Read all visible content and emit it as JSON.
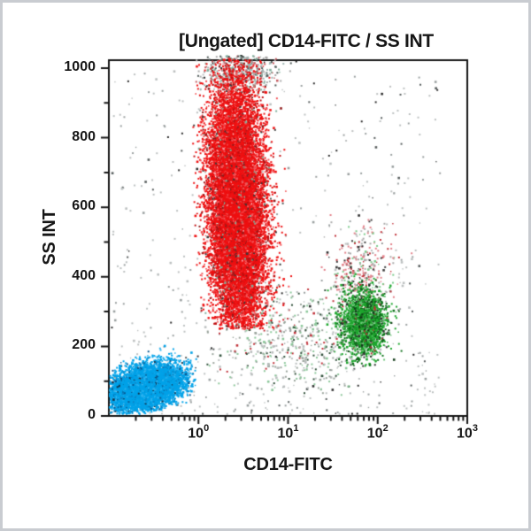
{
  "window": {
    "background": "#ffffff",
    "outer_border_color": "#c9ccd1",
    "frame_color": "#151515"
  },
  "chart_data": {
    "type": "scatter",
    "subtype": "flow-cytometry-dot-plot",
    "title": "[Ungated] CD14-FITC / SS INT",
    "xlabel": "CD14-FITC",
    "ylabel": "SS INT",
    "x_axis": {
      "scale": "log",
      "min_exp": -1,
      "max_exp": 3,
      "tick_base": "10",
      "tick_exponents": [
        "0",
        "1",
        "2",
        "3"
      ],
      "minor_ticks": "2-9 per decade"
    },
    "y_axis": {
      "scale": "linear",
      "min": 0,
      "max": 1000,
      "ticks": [
        "0",
        "200",
        "400",
        "600",
        "800",
        "1000"
      ],
      "minor_step": 100,
      "grid": false
    },
    "legend": null,
    "populations": [
      {
        "name": "background-debris",
        "count": 620,
        "x_log": {
          "uniform": [
            -1.0,
            2.7
          ]
        },
        "ss": {
          "pow": 1.8,
          "max": 1000
        },
        "colors": [
          [
            "#bcc0c0",
            0.55
          ],
          [
            "#9aa0a0",
            0.25
          ],
          [
            "#565c5c",
            0.12
          ],
          [
            "#2b2b2b",
            0.08
          ]
        ]
      },
      {
        "name": "monocyte-lymphocyte-smear",
        "count": 500,
        "x_log": {
          "mean": 1.15,
          "sd": 0.5,
          "clip": [
            0.0,
            1.75
          ]
        },
        "ss": {
          "mean": 215,
          "sd": 75,
          "clip": [
            60,
            390
          ]
        },
        "colors": [
          [
            "#9aa49c",
            0.28
          ],
          [
            "#8cc79a",
            0.27
          ],
          [
            "#b8bcbc",
            0.25
          ],
          [
            "#2f4f39",
            0.12
          ],
          [
            "#c03038",
            0.08
          ]
        ]
      },
      {
        "name": "saturation-band-top",
        "count": 430,
        "x_log": {
          "mean": 0.45,
          "sd": 0.22,
          "clip": [
            -0.05,
            1.15
          ]
        },
        "ss": {
          "mean": 1000,
          "sd": 45,
          "clip": [
            925,
            1035
          ]
        },
        "colors": [
          [
            "#9fb6b2",
            0.26
          ],
          [
            "#a9a9a9",
            0.24
          ],
          [
            "#4f5a58",
            0.16
          ],
          [
            "#c65b60",
            0.14
          ],
          [
            "#7fae9a",
            0.14
          ],
          [
            "#222222",
            0.06
          ]
        ]
      },
      {
        "name": "monocyte-halo",
        "count": 300,
        "x_log": {
          "mean": 1.84,
          "sd": 0.18,
          "clip": [
            1.3,
            2.5
          ]
        },
        "ss": {
          "mean": 408,
          "sd": 75,
          "clip": [
            340,
            580
          ]
        },
        "colors": [
          [
            "#e27f88",
            0.28
          ],
          [
            "#c03038",
            0.2
          ],
          [
            "#a9a9a9",
            0.24
          ],
          [
            "#3a3a3a",
            0.12
          ],
          [
            "#7ccb8c",
            0.16
          ]
        ]
      },
      {
        "name": "granulocytes",
        "count": 15000,
        "x_log": {
          "mean": 0.43,
          "sd": 0.155,
          "clip": [
            -0.05,
            1.1
          ]
        },
        "ss": {
          "mean": 600,
          "sd": 180,
          "clip": [
            250,
            1025
          ]
        },
        "xtilt_per_ss": -0.0001,
        "colors": [
          [
            "#ee1011",
            0.74
          ],
          [
            "#f4555a",
            0.1
          ],
          [
            "#c00e10",
            0.07
          ],
          [
            "#8f1a1a",
            0.04
          ],
          [
            "#3a3a3a",
            0.02
          ],
          [
            "#7fae9a",
            0.02
          ],
          [
            "#f79aa0",
            0.01
          ]
        ]
      },
      {
        "name": "monocytes",
        "count": 2100,
        "x_log": {
          "mean": 1.84,
          "sd": 0.125,
          "clip": [
            1.3,
            2.33
          ]
        },
        "ss": {
          "mean": 268,
          "sd": 46,
          "clip": [
            140,
            425
          ]
        },
        "colors": [
          [
            "#1ea62e",
            0.5
          ],
          [
            "#0b6e18",
            0.2
          ],
          [
            "#6cc47a",
            0.15
          ],
          [
            "#123b18",
            0.08
          ],
          [
            "#333333",
            0.04
          ],
          [
            "#c03038",
            0.03
          ]
        ]
      },
      {
        "name": "lymphocytes",
        "count": 7000,
        "x_log": {
          "mean": -0.58,
          "sd": 0.2,
          "clip": [
            -1.01,
            -0.02
          ]
        },
        "ss": {
          "mean": 82,
          "sd": 30,
          "clip": [
            8,
            195
          ]
        },
        "ss_tilt_per_decade": 55,
        "colors": [
          [
            "#00a2e8",
            0.8
          ],
          [
            "#2fb3ef",
            0.09
          ],
          [
            "#0b86c8",
            0.06
          ],
          [
            "#085a93",
            0.03
          ],
          [
            "#16324a",
            0.02
          ]
        ]
      }
    ]
  }
}
